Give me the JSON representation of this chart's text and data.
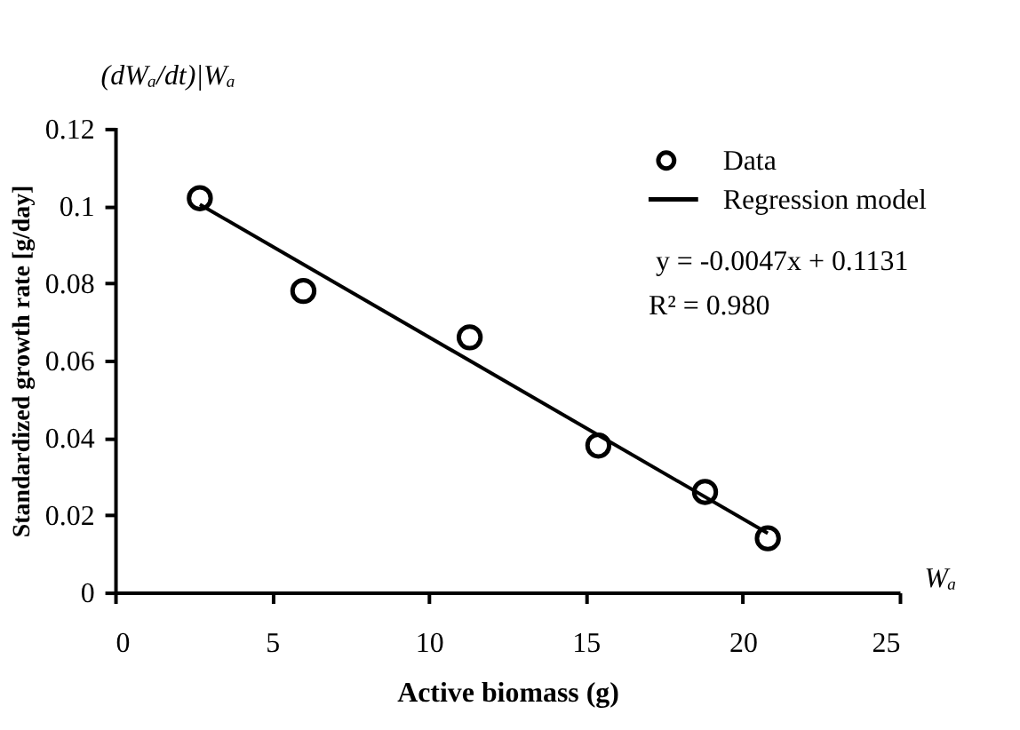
{
  "chart_data": {
    "type": "scatter",
    "xlabel": "Active biomass (g)",
    "ylabel": "Standardized growth rate [g/day]",
    "annotations": [
      "(dWₐ/dt)|Wₐ",
      "Wₐ",
      "y = -0.0047x + 0.1131",
      "R² = 0.980"
    ],
    "series": [
      {
        "name": "Data",
        "color": "#000000",
        "marker": "circle",
        "x": [
          2.7,
          6.0,
          11.3,
          15.4,
          18.8,
          20.8
        ],
        "values": [
          0.102,
          0.078,
          0.066,
          0.038,
          0.026,
          0.014
        ]
      },
      {
        "name": "Regression model",
        "type": "line",
        "color": "#000000",
        "marker": "none",
        "line_style": "solid",
        "x": [
          2.7,
          20.8
        ],
        "values": [
          0.1004,
          0.0153
        ]
      }
    ],
    "xlim": [
      0,
      25
    ],
    "xticks": [
      0,
      5,
      10,
      15,
      20,
      25
    ],
    "ylim": [
      0,
      0.12
    ],
    "yticks": [
      0,
      0.02,
      0.04,
      0.06,
      0.08,
      0.1,
      0.12
    ],
    "grid": false,
    "legend": "top right"
  }
}
